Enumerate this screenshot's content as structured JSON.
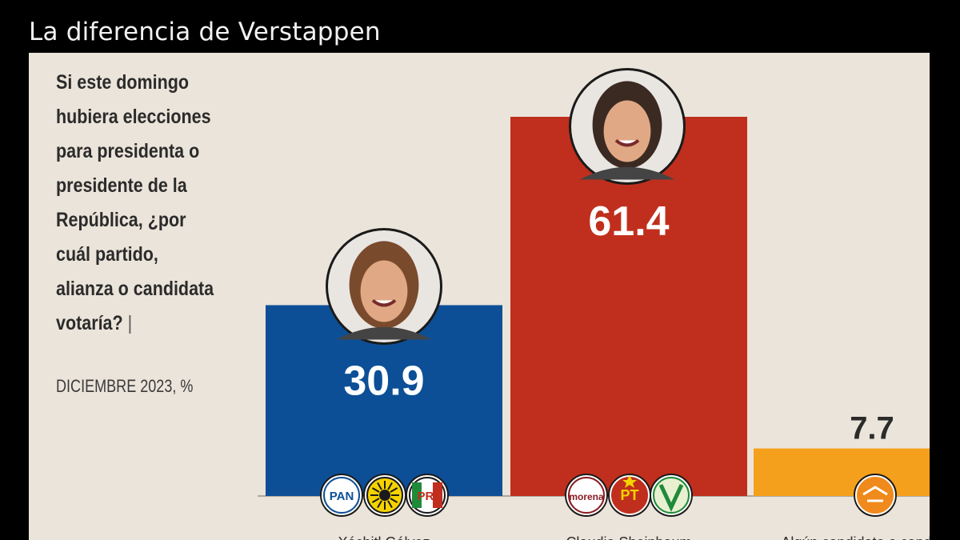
{
  "header": {
    "title": "La diferencia de Verstappen"
  },
  "panel": {
    "question": "Si este domingo hubiera elecciones para presidenta o presidente de la República, ¿por cuál partido, alianza o candidata votaría?",
    "separator": "|",
    "subtitle": "DICIEMBRE 2023, %"
  },
  "chart_data": {
    "type": "bar",
    "title": "Si este domingo hubiera elecciones para presidenta o presidente de la República, ¿por cuál partido, alianza o candidata votaría?",
    "subtitle": "DICIEMBRE 2023, %",
    "categories": [
      "Xóchitl Gálvez",
      "Claudia Sheinbaum",
      "Algún candidato o candidata"
    ],
    "values": [
      30.9,
      61.4,
      7.7
    ],
    "value_labels": [
      "30.9",
      "61.4",
      "7.7"
    ],
    "colors": [
      "#0d4f96",
      "#c02f1d",
      "#f5a01c"
    ],
    "party_logos": [
      [
        "PAN",
        "PRI"
      ],
      [
        "morena",
        "PT"
      ],
      []
    ],
    "ylim": [
      0,
      61.4
    ],
    "grid": false,
    "legend": "none"
  }
}
